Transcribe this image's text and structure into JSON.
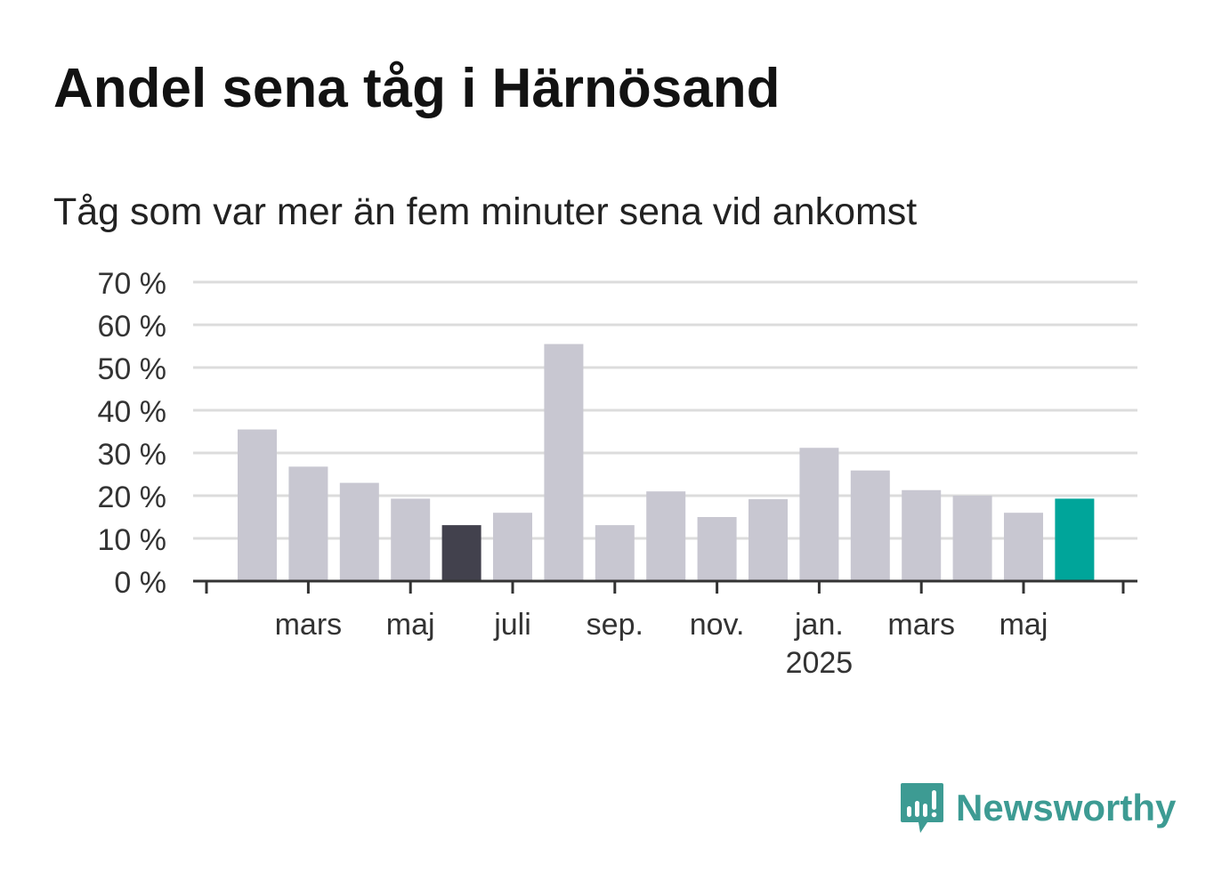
{
  "title": "Andel sena tåg i Härnösand",
  "subtitle": "Tåg som var mer än fem minuter sena vid ankomst",
  "brand": {
    "name": "Newsworthy",
    "color": "#3d9b93",
    "icon": "newsworthy-chart-bubble-icon"
  },
  "chart_data": {
    "type": "bar",
    "title": "Andel sena tåg i Härnösand",
    "subtitle": "Tåg som var mer än fem minuter sena vid ankomst",
    "xlabel": "",
    "ylabel": "",
    "categories": [
      "2024-02",
      "2024-03",
      "2024-04",
      "2024-05",
      "2024-06",
      "2024-07",
      "2024-08",
      "2024-09",
      "2024-10",
      "2024-11",
      "2024-12",
      "2025-01",
      "2025-02",
      "2025-03",
      "2025-04",
      "2025-05",
      "2025-06"
    ],
    "series": [
      {
        "values": [
          35.5,
          26.8,
          23.0,
          19.3,
          13.1,
          16.0,
          55.5,
          13.1,
          21.0,
          15.0,
          19.2,
          31.2,
          25.9,
          21.3,
          20.0,
          16.0,
          19.3
        ]
      }
    ],
    "highlight": [
      {
        "category": "2024-06",
        "color": "#42414d"
      },
      {
        "category": "2025-06",
        "color": "#00a59a"
      }
    ],
    "bar_color": "#c8c7d1",
    "ylim": [
      0,
      70
    ],
    "yticks": [
      0,
      10,
      20,
      30,
      40,
      50,
      60,
      70
    ],
    "ytick_labels": [
      "0 %",
      "10 %",
      "20 %",
      "30 %",
      "40 %",
      "50 %",
      "60 %",
      "70 %"
    ],
    "xticks": [
      {
        "category": "2024-03",
        "label": "mars"
      },
      {
        "category": "2024-05",
        "label": "maj"
      },
      {
        "category": "2024-07",
        "label": "juli"
      },
      {
        "category": "2024-09",
        "label": "sep."
      },
      {
        "category": "2024-11",
        "label": "nov."
      },
      {
        "category": "2025-01",
        "label": "jan.",
        "sublabel": "2025"
      },
      {
        "category": "2025-03",
        "label": "mars"
      },
      {
        "category": "2025-05",
        "label": "maj"
      }
    ],
    "grid": true,
    "legend": "none"
  }
}
